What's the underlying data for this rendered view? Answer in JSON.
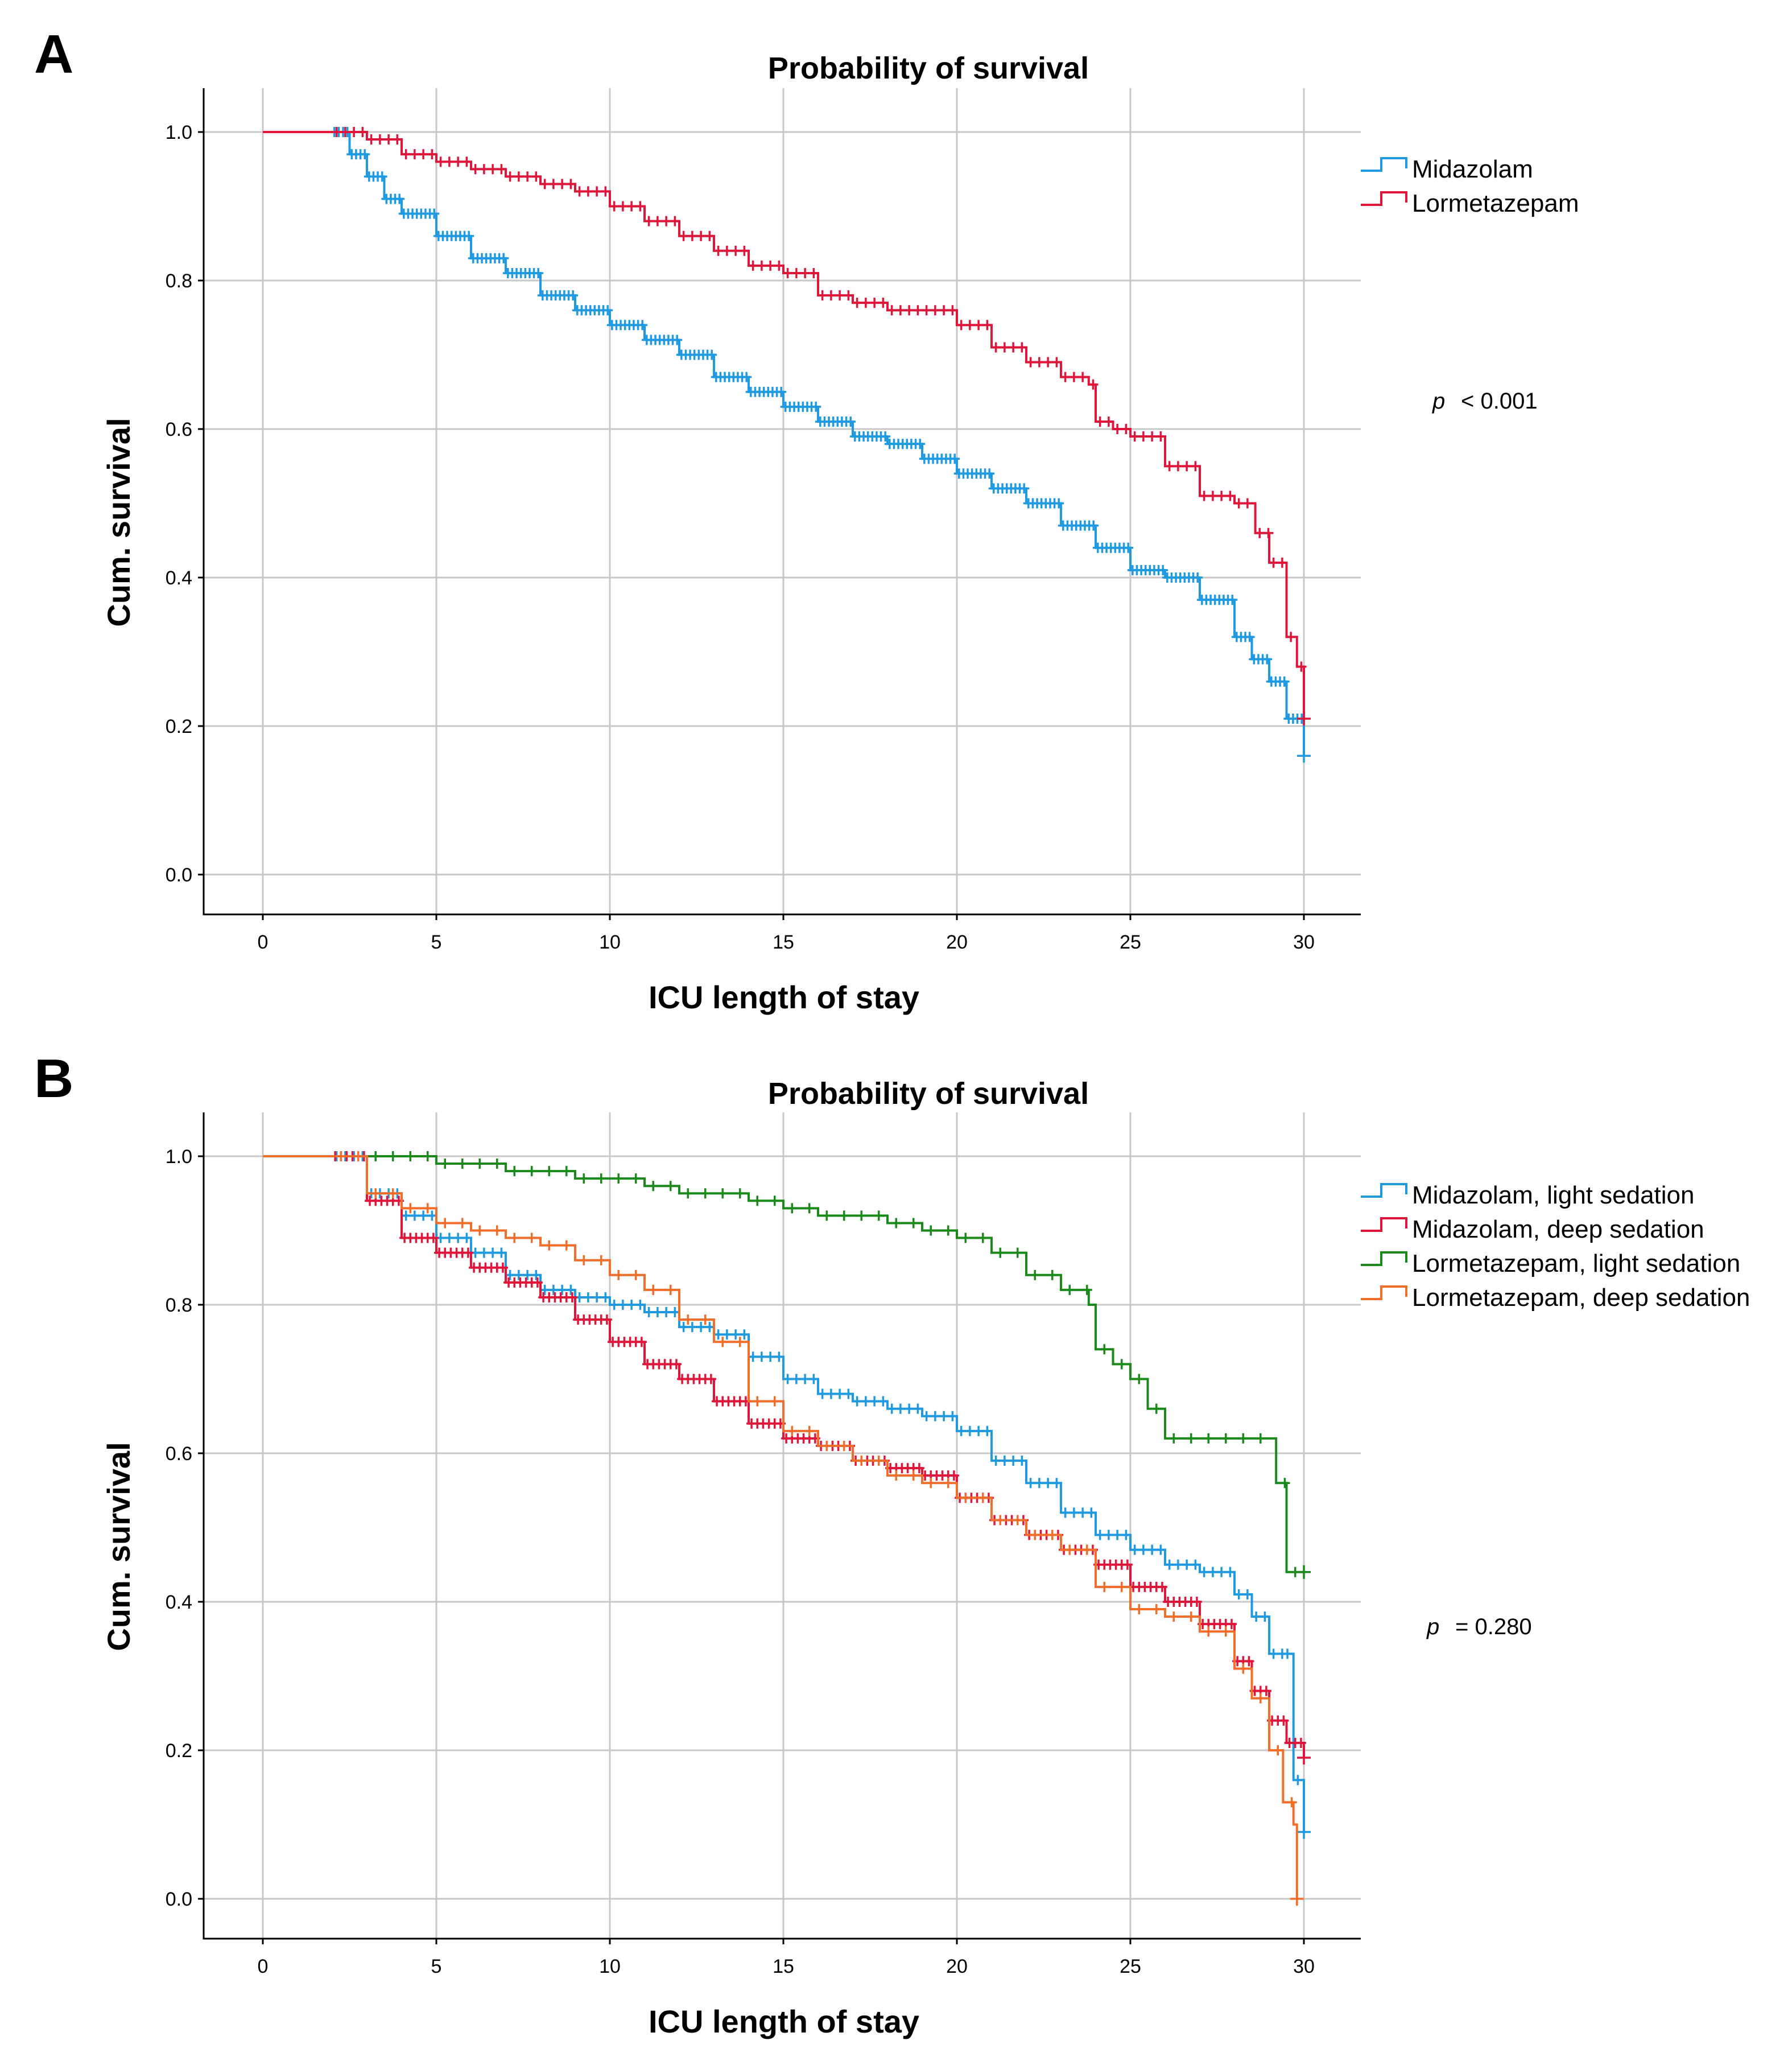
{
  "chart_data": [
    {
      "panel": "A",
      "type": "line",
      "title": "Probability of survival",
      "xlabel": "ICU length of stay",
      "ylabel": "Cum. survival",
      "xlim": [
        0,
        30
      ],
      "ylim": [
        0,
        1
      ],
      "xticks": [
        "0",
        "5",
        "10",
        "15",
        "20",
        "25",
        "30"
      ],
      "yticks": [
        "0.0",
        "0.2",
        "0.4",
        "0.6",
        "0.8",
        "1.0"
      ],
      "grid": true,
      "legend_position": "right",
      "p_label": "p",
      "p_value": "< 0.001",
      "series": [
        {
          "name": "Midazolam",
          "color": "#1f9ae0",
          "x": [
            0,
            2,
            2.5,
            3,
            3.5,
            4,
            5,
            6,
            7,
            8,
            9,
            10,
            11,
            12,
            13,
            14,
            15,
            16,
            17,
            18,
            19,
            20,
            21,
            22,
            23,
            24,
            25,
            26,
            27,
            28,
            28.5,
            29,
            29.5,
            30
          ],
          "y": [
            1.0,
            1.0,
            0.97,
            0.94,
            0.91,
            0.89,
            0.86,
            0.83,
            0.81,
            0.78,
            0.76,
            0.74,
            0.72,
            0.7,
            0.67,
            0.65,
            0.63,
            0.61,
            0.59,
            0.58,
            0.56,
            0.54,
            0.52,
            0.5,
            0.47,
            0.44,
            0.41,
            0.4,
            0.37,
            0.32,
            0.29,
            0.26,
            0.21,
            0.16
          ],
          "censor_density": 4
        },
        {
          "name": "Lormetazepam",
          "color": "#e0153a",
          "x": [
            0,
            2,
            3,
            4,
            5,
            6,
            7,
            8,
            9,
            10,
            11,
            12,
            13,
            14,
            15,
            16,
            17,
            18,
            19,
            20,
            21,
            22,
            23,
            23.8,
            24,
            24.5,
            25,
            26,
            27,
            28,
            28.6,
            29,
            29.5,
            29.8,
            30
          ],
          "y": [
            1.0,
            1.0,
            0.99,
            0.97,
            0.96,
            0.95,
            0.94,
            0.93,
            0.92,
            0.9,
            0.88,
            0.86,
            0.84,
            0.82,
            0.81,
            0.78,
            0.77,
            0.76,
            0.76,
            0.74,
            0.71,
            0.69,
            0.67,
            0.66,
            0.61,
            0.6,
            0.59,
            0.55,
            0.51,
            0.5,
            0.46,
            0.42,
            0.32,
            0.28,
            0.21
          ],
          "censor_density": 2
        }
      ]
    },
    {
      "panel": "B",
      "type": "line",
      "title": "Probability of survival",
      "xlabel": "ICU length of stay",
      "ylabel": "Cum. survival",
      "xlim": [
        0,
        30
      ],
      "ylim": [
        0,
        1
      ],
      "xticks": [
        "0",
        "5",
        "10",
        "15",
        "20",
        "25",
        "30"
      ],
      "yticks": [
        "0.0",
        "0.2",
        "0.4",
        "0.6",
        "0.8",
        "1.0"
      ],
      "grid": true,
      "legend_position": "right",
      "p_label": "p",
      "p_value": "= 0.280",
      "series": [
        {
          "name": "Midazolam, light sedation",
          "color": "#1f9ae0",
          "x": [
            0,
            2,
            3,
            4,
            5,
            6,
            7,
            8,
            9,
            10,
            11,
            12,
            13,
            14,
            15,
            16,
            17,
            18,
            19,
            20,
            21,
            22,
            23,
            24,
            25,
            26,
            27,
            28,
            28.5,
            29,
            29.4,
            29.7,
            30
          ],
          "y": [
            1.0,
            1.0,
            0.95,
            0.92,
            0.89,
            0.87,
            0.84,
            0.82,
            0.81,
            0.8,
            0.79,
            0.77,
            0.76,
            0.73,
            0.7,
            0.68,
            0.67,
            0.66,
            0.65,
            0.63,
            0.59,
            0.56,
            0.52,
            0.49,
            0.47,
            0.45,
            0.44,
            0.41,
            0.38,
            0.33,
            0.33,
            0.16,
            0.09
          ],
          "censor_density": 2
        },
        {
          "name": "Midazolam, deep sedation",
          "color": "#e0153a",
          "x": [
            0,
            2,
            3,
            4,
            5,
            6,
            7,
            8,
            9,
            10,
            11,
            12,
            13,
            14,
            15,
            16,
            17,
            18,
            19,
            20,
            21,
            22,
            23,
            24,
            25,
            26,
            27,
            28,
            28.5,
            29,
            29.5,
            30
          ],
          "y": [
            1.0,
            1.0,
            0.94,
            0.89,
            0.87,
            0.85,
            0.83,
            0.81,
            0.78,
            0.75,
            0.72,
            0.7,
            0.67,
            0.64,
            0.62,
            0.61,
            0.59,
            0.58,
            0.57,
            0.54,
            0.51,
            0.49,
            0.47,
            0.45,
            0.42,
            0.4,
            0.37,
            0.32,
            0.28,
            0.24,
            0.21,
            0.19
          ],
          "censor_density": 3
        },
        {
          "name": "Lormetazepam, light sedation",
          "color": "#1a8a1a",
          "x": [
            0,
            2,
            3,
            4,
            5,
            6,
            7,
            8,
            9,
            10,
            11,
            12,
            13,
            14,
            15,
            16,
            17,
            18,
            19,
            20,
            21,
            22,
            23,
            23.8,
            24,
            24.5,
            25,
            25.5,
            26,
            27,
            28,
            29,
            29.2,
            29.5,
            30
          ],
          "y": [
            1.0,
            1.0,
            1.0,
            1.0,
            0.99,
            0.99,
            0.98,
            0.98,
            0.97,
            0.97,
            0.96,
            0.95,
            0.95,
            0.94,
            0.93,
            0.92,
            0.92,
            0.91,
            0.9,
            0.89,
            0.87,
            0.84,
            0.82,
            0.8,
            0.74,
            0.72,
            0.7,
            0.66,
            0.62,
            0.62,
            0.62,
            0.62,
            0.56,
            0.44,
            0.44
          ],
          "censor_density": 1
        },
        {
          "name": "Lormetazepam, deep sedation",
          "color": "#f26c2a",
          "x": [
            0,
            2,
            3,
            4,
            5,
            6,
            7,
            8,
            9,
            10,
            11,
            12,
            13,
            14,
            15,
            16,
            17,
            18,
            19,
            20,
            21,
            22,
            23,
            24,
            25,
            26,
            27,
            28,
            28.5,
            29,
            29.4,
            29.7,
            29.8
          ],
          "y": [
            1.0,
            1.0,
            0.95,
            0.93,
            0.91,
            0.9,
            0.89,
            0.88,
            0.86,
            0.84,
            0.82,
            0.78,
            0.75,
            0.67,
            0.63,
            0.61,
            0.59,
            0.57,
            0.56,
            0.54,
            0.51,
            0.49,
            0.47,
            0.42,
            0.39,
            0.38,
            0.36,
            0.31,
            0.27,
            0.2,
            0.13,
            0.1,
            0.0
          ],
          "censor_density": 1
        }
      ]
    }
  ]
}
